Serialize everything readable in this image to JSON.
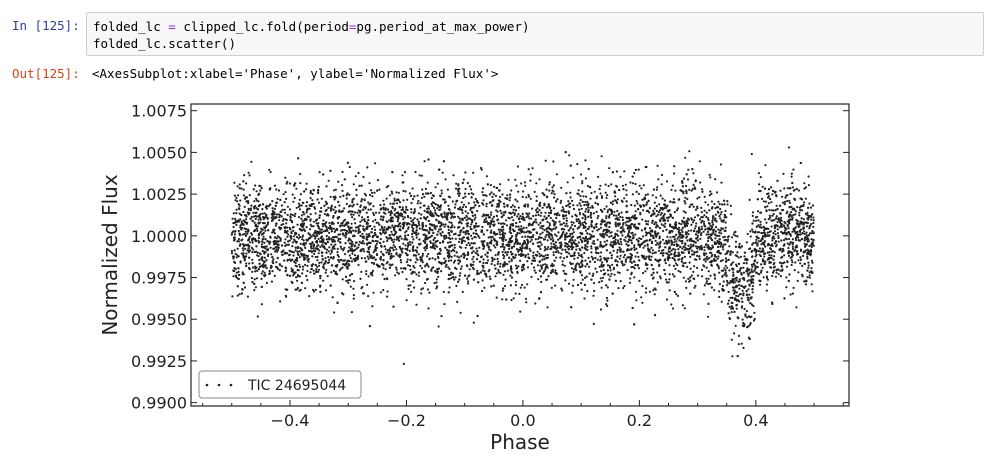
{
  "cell": {
    "in_prompt": "In [125]:",
    "code_line1": {
      "a": "folded_lc ",
      "op": "=",
      "b": " clipped_lc.fold(period",
      "op2": "=",
      "c": "pg.period_at_max_power)"
    },
    "code_line2": "folded_lc.scatter()",
    "out_prompt": "Out[125]:",
    "output": "<AxesSubplot:xlabel='Phase', ylabel='Normalized Flux'>"
  },
  "chart_data": {
    "type": "scatter",
    "title": "",
    "xlabel": "Phase",
    "ylabel": "Normalized Flux",
    "xlim": [
      -0.57,
      0.56
    ],
    "ylim": [
      0.9898,
      1.0079
    ],
    "xticks": [
      -0.4,
      -0.2,
      0.0,
      0.2,
      0.4
    ],
    "xtick_labels": [
      "−0.4",
      "−0.2",
      "0.0",
      "0.2",
      "0.4"
    ],
    "yticks": [
      0.99,
      0.9925,
      0.995,
      0.9975,
      1.0,
      1.0025,
      1.005,
      1.0075
    ],
    "ytick_labels": [
      "0.9900",
      "0.9925",
      "0.9950",
      "0.9975",
      "1.0000",
      "1.0025",
      "1.0050",
      "1.0075"
    ],
    "grid": false,
    "legend_position": "lower-left",
    "series": [
      {
        "name": "TIC 24695044",
        "color": "#222222",
        "x_range": [
          -0.5,
          0.5
        ],
        "baseline": 1.0,
        "scatter_std": 0.0016,
        "transit": {
          "center": 0.373,
          "halfwidth": 0.03,
          "depth": 0.0045
        },
        "n_points": 6500
      }
    ]
  }
}
